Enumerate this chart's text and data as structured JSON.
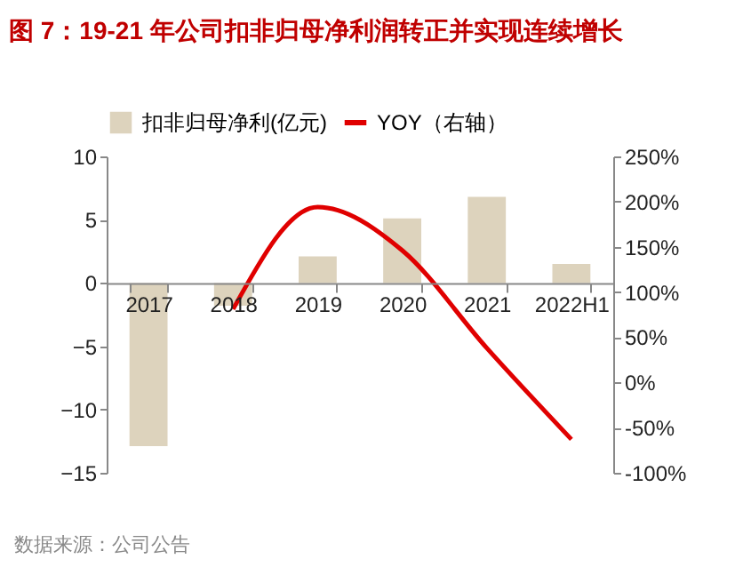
{
  "chart_data": {
    "type": "bar",
    "title": "图 7：19-21 年公司扣非归母净利润转正并实现连续增长",
    "categories": [
      "2017",
      "2018",
      "2019",
      "2020",
      "2021",
      "2022H1"
    ],
    "series": [
      {
        "name": "扣非归母净利(亿元)",
        "color": "#ddd3bd",
        "values": [
          -12.9,
          -1.8,
          2.1,
          5.1,
          6.8,
          1.5
        ]
      },
      {
        "name": "YOY（右轴）",
        "type": "line",
        "axis": "y2",
        "color": "#e00000",
        "marker": "none",
        "values": [
          null,
          81,
          194,
          146,
          38,
          -63
        ]
      }
    ],
    "ylim": [
      -15,
      10
    ],
    "yticks": [
      -15,
      -10,
      -5,
      0,
      5,
      10
    ],
    "y2lim": [
      -100,
      250
    ],
    "y2ticks": [
      {
        "value": -100,
        "label": "-100%"
      },
      {
        "value": -50,
        "label": "-50%"
      },
      {
        "value": 0,
        "label": "0%"
      },
      {
        "value": 50,
        "label": "50%"
      },
      {
        "value": 100,
        "label": "100%"
      },
      {
        "value": 150,
        "label": "150%"
      },
      {
        "value": 200,
        "label": "200%"
      },
      {
        "value": 250,
        "label": "250%"
      }
    ],
    "grid": false,
    "legend": "top",
    "annotations": [
      "数据来源：公司公告"
    ]
  }
}
